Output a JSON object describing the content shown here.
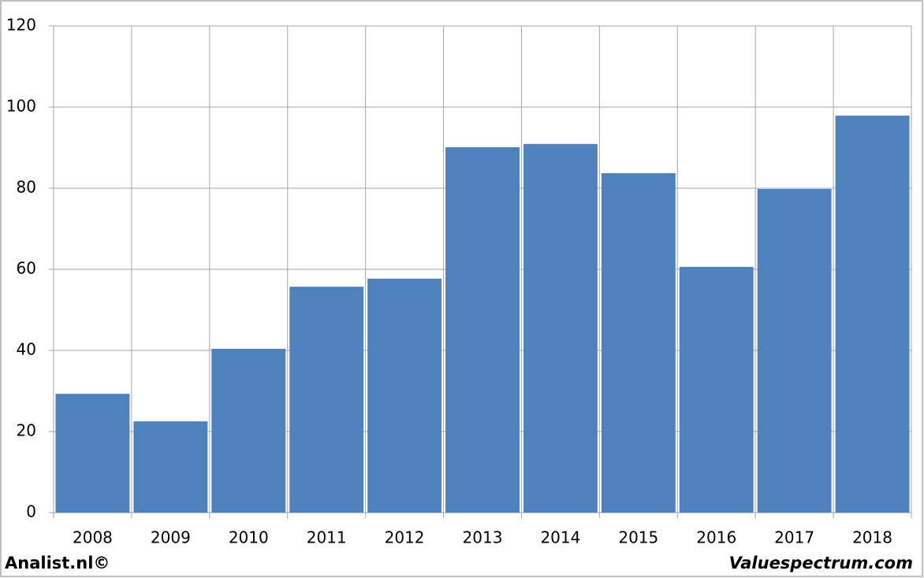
{
  "chart_data": {
    "type": "bar",
    "categories": [
      "2008",
      "2009",
      "2010",
      "2011",
      "2012",
      "2013",
      "2014",
      "2015",
      "2016",
      "2017",
      "2018"
    ],
    "values": [
      29.3,
      22.5,
      40.4,
      55.7,
      57.7,
      90.1,
      90.9,
      83.7,
      60.6,
      79.8,
      97.9
    ],
    "color": "#4f81bd",
    "ylim": [
      0,
      120
    ],
    "yticks": [
      0,
      20,
      40,
      60,
      80,
      100,
      120
    ],
    "grid": true,
    "footer_left": "Analist.nl©",
    "footer_right": "Valuespectrum.com"
  }
}
